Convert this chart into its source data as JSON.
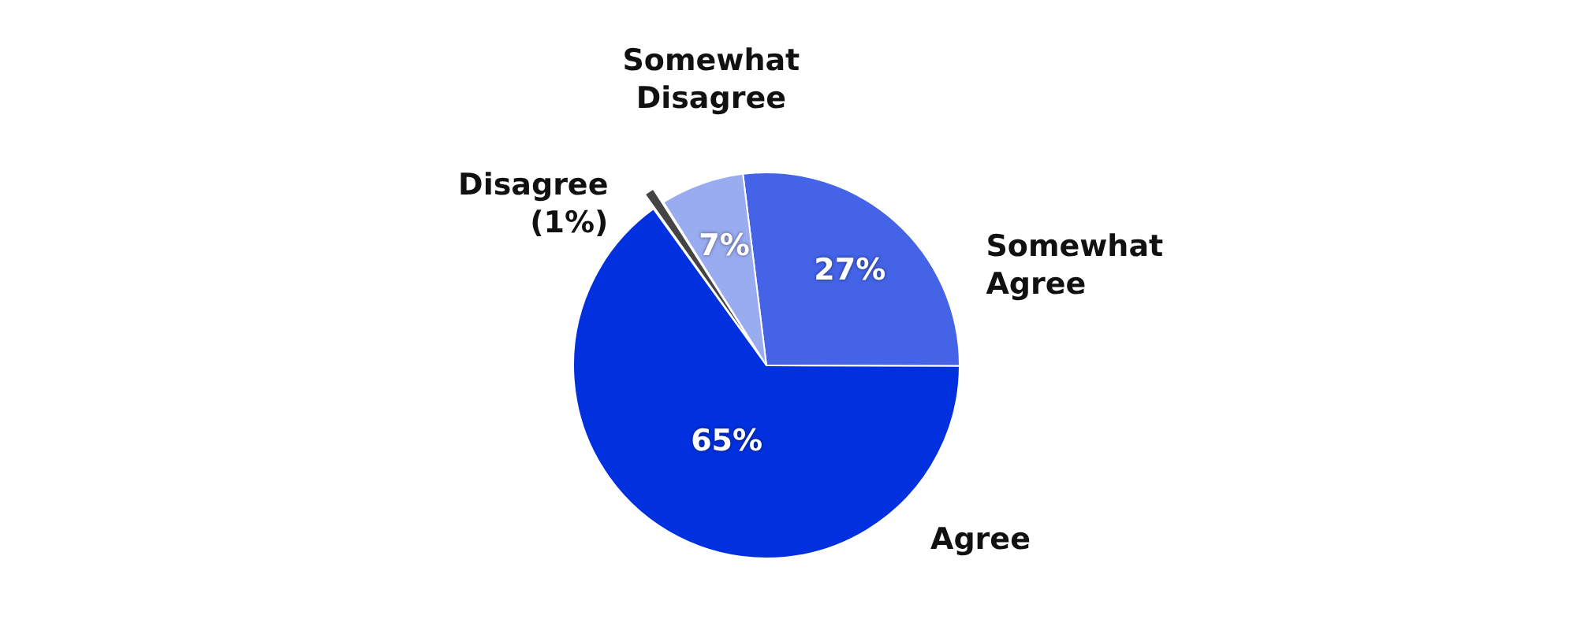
{
  "chart_data": {
    "type": "pie",
    "categories": [
      "Somewhat Agree",
      "Agree",
      "Disagree",
      "Somewhat Disagree"
    ],
    "values": [
      27,
      65,
      1,
      7
    ],
    "colors": [
      "#4463e6",
      "#0131de",
      "#444444",
      "#9aacf0"
    ],
    "value_labels": [
      "27%",
      "65%",
      "(1%)",
      "7%"
    ],
    "legend": false
  }
}
